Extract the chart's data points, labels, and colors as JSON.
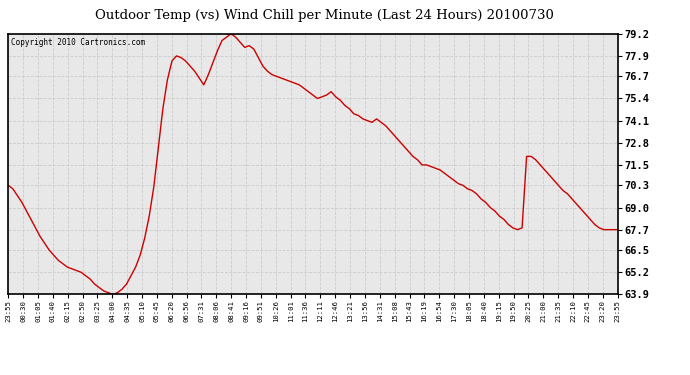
{
  "title": "Outdoor Temp (vs) Wind Chill per Minute (Last 24 Hours) 20100730",
  "copyright": "Copyright 2010 Cartronics.com",
  "line_color": "#cc0000",
  "background_color": "#ffffff",
  "plot_bg_color": "#e8e8e8",
  "grid_color": "#cccccc",
  "ylim": [
    63.9,
    79.2
  ],
  "yticks": [
    63.9,
    65.2,
    66.5,
    67.7,
    69.0,
    70.3,
    71.5,
    72.8,
    74.1,
    75.4,
    76.7,
    77.9,
    79.2
  ],
  "xtick_labels": [
    "23:55",
    "00:30",
    "01:05",
    "01:40",
    "02:15",
    "02:50",
    "03:25",
    "04:00",
    "04:35",
    "05:10",
    "05:45",
    "06:20",
    "06:56",
    "07:31",
    "08:06",
    "08:41",
    "09:16",
    "09:51",
    "10:26",
    "11:01",
    "11:36",
    "12:11",
    "12:46",
    "13:21",
    "13:56",
    "14:31",
    "15:08",
    "15:43",
    "16:19",
    "16:54",
    "17:30",
    "18:05",
    "18:40",
    "19:15",
    "19:50",
    "20:25",
    "21:00",
    "21:35",
    "22:10",
    "22:45",
    "23:20",
    "23:55"
  ],
  "data_y": [
    70.3,
    70.1,
    69.7,
    69.3,
    68.8,
    68.3,
    67.8,
    67.3,
    66.9,
    66.5,
    66.2,
    65.9,
    65.7,
    65.5,
    65.4,
    65.3,
    65.2,
    65.0,
    64.8,
    64.5,
    64.3,
    64.1,
    64.0,
    63.9,
    64.0,
    64.2,
    64.5,
    65.0,
    65.5,
    66.2,
    67.2,
    68.5,
    70.2,
    72.5,
    74.8,
    76.5,
    77.6,
    77.9,
    77.8,
    77.6,
    77.3,
    77.0,
    76.6,
    76.2,
    76.8,
    77.5,
    78.2,
    78.8,
    79.0,
    79.2,
    79.0,
    78.7,
    78.4,
    78.5,
    78.3,
    77.8,
    77.3,
    77.0,
    76.8,
    76.7,
    76.6,
    76.5,
    76.4,
    76.3,
    76.2,
    76.0,
    75.8,
    75.6,
    75.4,
    75.5,
    75.6,
    75.8,
    75.5,
    75.3,
    75.0,
    74.8,
    74.5,
    74.4,
    74.2,
    74.1,
    74.0,
    74.2,
    74.0,
    73.8,
    73.5,
    73.2,
    72.9,
    72.6,
    72.3,
    72.0,
    71.8,
    71.5,
    71.5,
    71.4,
    71.3,
    71.2,
    71.0,
    70.8,
    70.6,
    70.4,
    70.3,
    70.1,
    70.0,
    69.8,
    69.5,
    69.3,
    69.0,
    68.8,
    68.5,
    68.3,
    68.0,
    67.8,
    67.7,
    67.8,
    72.0,
    72.0,
    71.8,
    71.5,
    71.2,
    70.9,
    70.6,
    70.3,
    70.0,
    69.8,
    69.5,
    69.2,
    68.9,
    68.6,
    68.3,
    68.0,
    67.8,
    67.7,
    67.7,
    67.7,
    67.7
  ]
}
